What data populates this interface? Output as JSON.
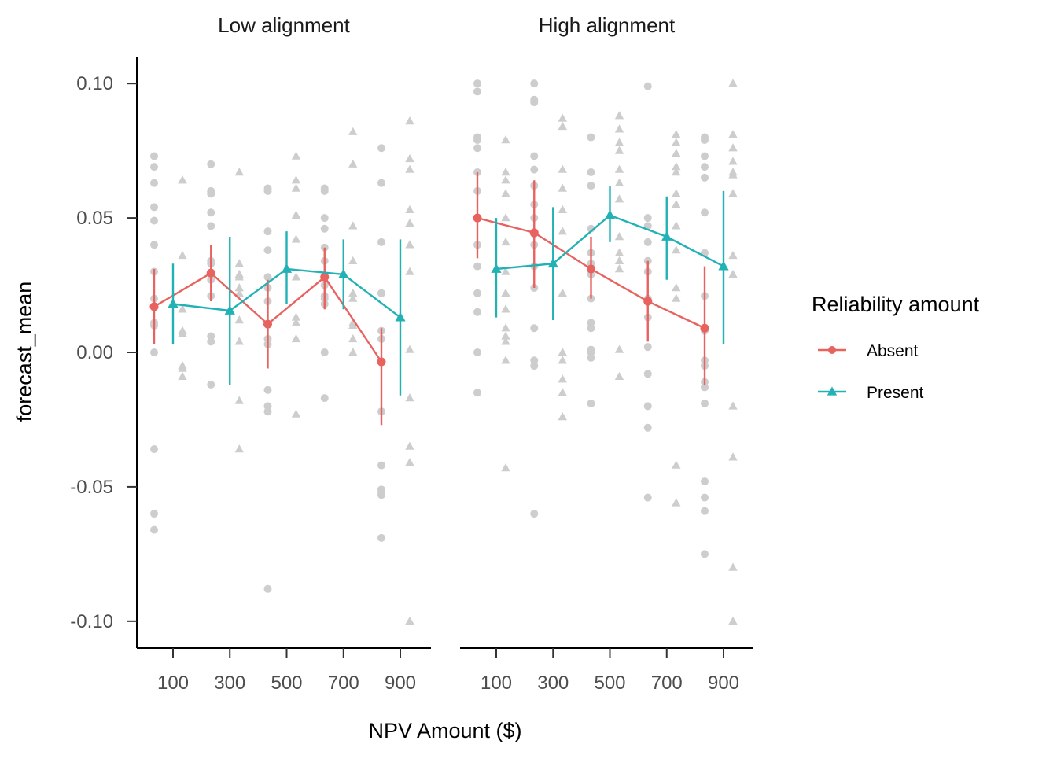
{
  "chart_data": {
    "type": "line",
    "panels": [
      {
        "title": "Low alignment",
        "series": [
          {
            "name": "Absent",
            "points": [
              {
                "x": 100,
                "y": 0.017,
                "lo": 0.003,
                "hi": 0.031
              },
              {
                "x": 300,
                "y": 0.0295,
                "lo": 0.019,
                "hi": 0.04
              },
              {
                "x": 500,
                "y": 0.0105,
                "lo": -0.006,
                "hi": 0.027
              },
              {
                "x": 700,
                "y": 0.028,
                "lo": 0.016,
                "hi": 0.039
              },
              {
                "x": 900,
                "y": -0.0035,
                "lo": -0.027,
                "hi": 0.009
              }
            ]
          },
          {
            "name": "Present",
            "points": [
              {
                "x": 100,
                "y": 0.018,
                "lo": 0.003,
                "hi": 0.033
              },
              {
                "x": 300,
                "y": 0.0155,
                "lo": -0.012,
                "hi": 0.043
              },
              {
                "x": 500,
                "y": 0.031,
                "lo": 0.018,
                "hi": 0.045
              },
              {
                "x": 700,
                "y": 0.029,
                "lo": 0.016,
                "hi": 0.042
              },
              {
                "x": 900,
                "y": 0.013,
                "lo": -0.016,
                "hi": 0.042
              }
            ]
          }
        ],
        "raw": {
          "Absent": [
            [
              0.073,
              0.069,
              0.063,
              0.054,
              0.049,
              0.04,
              0.03,
              0.02,
              0.011,
              0.01,
              0.0,
              -0.036,
              -0.06,
              -0.066
            ],
            [
              0.07,
              0.06,
              0.059,
              0.052,
              0.047,
              0.034,
              0.033,
              0.027,
              0.021,
              0.006,
              0.004,
              -0.012
            ],
            [
              0.061,
              0.06,
              0.045,
              0.038,
              0.028,
              0.024,
              0.019,
              0.005,
              0.003,
              -0.014,
              -0.02,
              -0.022,
              -0.088
            ],
            [
              0.061,
              0.06,
              0.05,
              0.046,
              0.039,
              0.034,
              0.025,
              0.021,
              0.02,
              0.018,
              0.0,
              -0.017
            ],
            [
              0.076,
              0.063,
              0.041,
              0.022,
              0.022,
              0.008,
              0.005,
              -0.022,
              -0.042,
              -0.051,
              -0.052,
              -0.053,
              -0.069
            ]
          ],
          "Present": [
            [
              0.064,
              0.064,
              0.036,
              0.016,
              0.008,
              0.007,
              -0.005,
              -0.006,
              -0.009
            ],
            [
              0.067,
              0.033,
              0.029,
              0.028,
              0.024,
              0.022,
              0.012,
              0.004,
              -0.018,
              -0.036
            ],
            [
              0.073,
              0.064,
              0.061,
              0.051,
              0.051,
              0.042,
              0.028,
              0.013,
              0.011,
              0.005,
              -0.023
            ],
            [
              0.082,
              0.07,
              0.047,
              0.034,
              0.022,
              0.02,
              0.011,
              0.01,
              0.005,
              0.0
            ],
            [
              0.086,
              0.072,
              0.068,
              0.053,
              0.048,
              0.04,
              0.03,
              0.001,
              -0.017,
              -0.035,
              -0.041,
              -0.1
            ]
          ]
        }
      },
      {
        "title": "High alignment",
        "series": [
          {
            "name": "Absent",
            "points": [
              {
                "x": 100,
                "y": 0.05,
                "lo": 0.035,
                "hi": 0.067
              },
              {
                "x": 300,
                "y": 0.0445,
                "lo": 0.024,
                "hi": 0.064
              },
              {
                "x": 500,
                "y": 0.031,
                "lo": 0.02,
                "hi": 0.043
              },
              {
                "x": 700,
                "y": 0.019,
                "lo": 0.004,
                "hi": 0.034
              },
              {
                "x": 900,
                "y": 0.009,
                "lo": -0.012,
                "hi": 0.032
              }
            ]
          },
          {
            "name": "Present",
            "points": [
              {
                "x": 100,
                "y": 0.031,
                "lo": 0.013,
                "hi": 0.05
              },
              {
                "x": 300,
                "y": 0.033,
                "lo": 0.012,
                "hi": 0.054
              },
              {
                "x": 500,
                "y": 0.051,
                "lo": 0.041,
                "hi": 0.062
              },
              {
                "x": 700,
                "y": 0.043,
                "lo": 0.027,
                "hi": 0.058
              },
              {
                "x": 900,
                "y": 0.032,
                "lo": 0.003,
                "hi": 0.06
              }
            ]
          }
        ],
        "raw": {
          "Absent": [
            [
              0.1,
              0.097,
              0.08,
              0.079,
              0.076,
              0.067,
              0.06,
              0.05,
              0.04,
              0.032,
              0.022,
              0.015,
              0.0,
              -0.015
            ],
            [
              0.1,
              0.094,
              0.093,
              0.073,
              0.068,
              0.062,
              0.055,
              0.05,
              0.044,
              0.04,
              0.032,
              0.024,
              0.009,
              -0.003,
              -0.005,
              -0.06
            ],
            [
              0.08,
              0.067,
              0.062,
              0.046,
              0.037,
              0.033,
              0.029,
              0.02,
              0.011,
              0.009,
              0.001,
              0.0,
              -0.002,
              -0.019
            ],
            [
              0.099,
              0.05,
              0.047,
              0.041,
              0.034,
              0.03,
              0.02,
              0.013,
              0.002,
              -0.008,
              -0.02,
              -0.028,
              -0.054
            ],
            [
              0.08,
              0.079,
              0.073,
              0.069,
              0.065,
              0.052,
              0.037,
              0.021,
              0.008,
              -0.003,
              -0.005,
              -0.011,
              -0.013,
              -0.019,
              -0.048,
              -0.054,
              -0.059,
              -0.075
            ]
          ],
          "Present": [
            [
              0.079,
              0.067,
              0.064,
              0.059,
              0.05,
              0.041,
              0.03,
              0.022,
              0.016,
              0.009,
              0.006,
              0.004,
              -0.003,
              -0.043
            ],
            [
              0.087,
              0.084,
              0.068,
              0.061,
              0.053,
              0.045,
              0.022,
              0.0,
              -0.003,
              -0.01,
              -0.015,
              -0.024
            ],
            [
              0.088,
              0.083,
              0.078,
              0.075,
              0.068,
              0.063,
              0.057,
              0.043,
              0.037,
              0.034,
              0.031,
              0.001,
              -0.009
            ],
            [
              0.081,
              0.078,
              0.074,
              0.069,
              0.067,
              0.059,
              0.055,
              0.047,
              0.038,
              0.024,
              0.02,
              -0.042,
              -0.056
            ],
            [
              0.1,
              0.081,
              0.076,
              0.071,
              0.067,
              0.066,
              0.059,
              0.036,
              0.029,
              -0.02,
              -0.039,
              -0.08,
              -0.1
            ]
          ]
        }
      }
    ],
    "xlabel": "NPV Amount ($)",
    "ylabel": "forecast_mean",
    "x_ticks": [
      100,
      300,
      500,
      700,
      900
    ],
    "y_ticks": [
      -0.1,
      -0.05,
      0.0,
      0.05,
      0.1
    ],
    "y_tick_labels": [
      "-0.10",
      "-0.05",
      "0.00",
      "0.05",
      "0.10"
    ],
    "ylim": [
      -0.11,
      0.11
    ],
    "legend": {
      "title": "Reliability amount",
      "placement": "right",
      "entries": [
        "Absent",
        "Present"
      ]
    },
    "colors": {
      "Absent": "#E8635F",
      "Present": "#22B1B5",
      "raw_points": "#A6A6A6",
      "axis": "#000000"
    },
    "grid": false
  }
}
